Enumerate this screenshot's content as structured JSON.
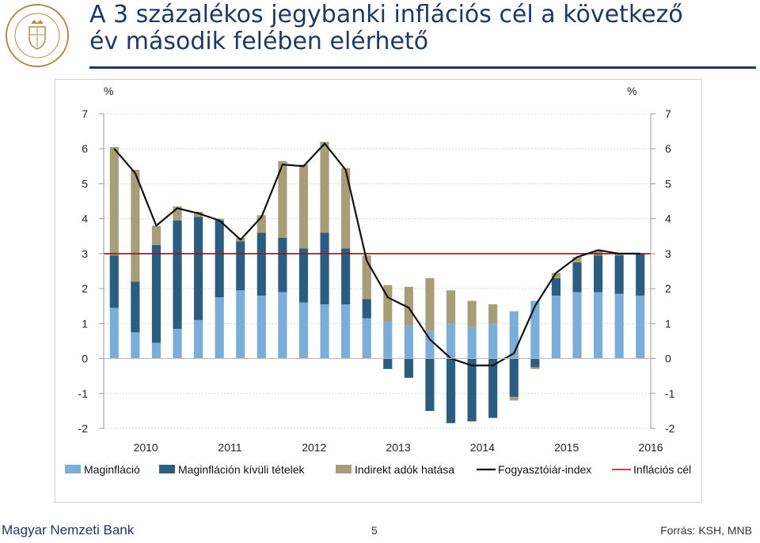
{
  "title_line1": "A 3 százalékos jegybanki inflációs cél a következő",
  "title_line2": "év második felében elérhető",
  "logo_text": "MAGYAR NEMZETI BANK",
  "footer": {
    "org": "Magyar Nemzeti Bank",
    "page": "5",
    "source": "Forrás: KSH, MNB"
  },
  "colors": {
    "title": "#1f3864",
    "core": "#7aaed8",
    "non_core": "#2b5d80",
    "indirect": "#a99d78",
    "cpi": "#111111",
    "target": "#8b1a1a"
  },
  "chart_data": {
    "type": "bar",
    "stacked": true,
    "ylabel_left": "%",
    "ylabel_right": "%",
    "ylim": [
      -2,
      7
    ],
    "yticks": [
      7,
      6,
      5,
      4,
      3,
      2,
      1,
      0,
      -1,
      -2
    ],
    "x_axis_labels": [
      "2010",
      "2011",
      "2012",
      "2013",
      "2014",
      "2015",
      "2016"
    ],
    "periods_per_label": 4,
    "grid": true,
    "legend_position": "bottom",
    "series": [
      {
        "name": "Maginfláció",
        "values": [
          1.45,
          0.75,
          0.45,
          0.85,
          1.1,
          1.75,
          1.95,
          1.8,
          1.9,
          1.6,
          1.55,
          1.55,
          1.15,
          1.05,
          0.95,
          0.8,
          1.0,
          0.9,
          1.0,
          1.35,
          1.65,
          1.8,
          1.9,
          1.9,
          1.85,
          1.8
        ]
      },
      {
        "name": "Maginfláción kívüli tételek",
        "values": [
          1.5,
          1.45,
          2.8,
          3.1,
          2.95,
          2.2,
          1.4,
          1.8,
          1.55,
          1.55,
          2.05,
          1.6,
          0.55,
          -0.3,
          -0.55,
          -1.5,
          -1.85,
          -1.8,
          -1.7,
          -1.1,
          -0.25,
          0.5,
          0.85,
          1.05,
          1.1,
          1.2
        ]
      },
      {
        "name": "Indirekt adók hatása",
        "values": [
          3.1,
          3.2,
          0.55,
          0.4,
          0.15,
          0.05,
          0.1,
          0.5,
          2.2,
          2.4,
          2.6,
          2.3,
          1.25,
          1.05,
          1.1,
          1.5,
          0.95,
          0.75,
          0.55,
          -0.1,
          -0.05,
          0.15,
          0.15,
          0.15,
          0.05,
          0.0
        ]
      }
    ],
    "line_series": [
      {
        "name": "Fogyasztóiár-index",
        "values": [
          6.0,
          5.3,
          3.8,
          4.3,
          4.15,
          3.95,
          3.4,
          4.05,
          5.55,
          5.5,
          6.15,
          5.4,
          2.8,
          1.75,
          1.45,
          0.55,
          0.0,
          -0.2,
          -0.2,
          0.15,
          1.5,
          2.45,
          2.9,
          3.1,
          3.0,
          3.0
        ]
      },
      {
        "name": "Inflációs cél",
        "values": [
          3,
          3,
          3,
          3,
          3,
          3,
          3,
          3,
          3,
          3,
          3,
          3,
          3,
          3,
          3,
          3,
          3,
          3,
          3,
          3,
          3,
          3,
          3,
          3,
          3,
          3
        ]
      }
    ]
  }
}
